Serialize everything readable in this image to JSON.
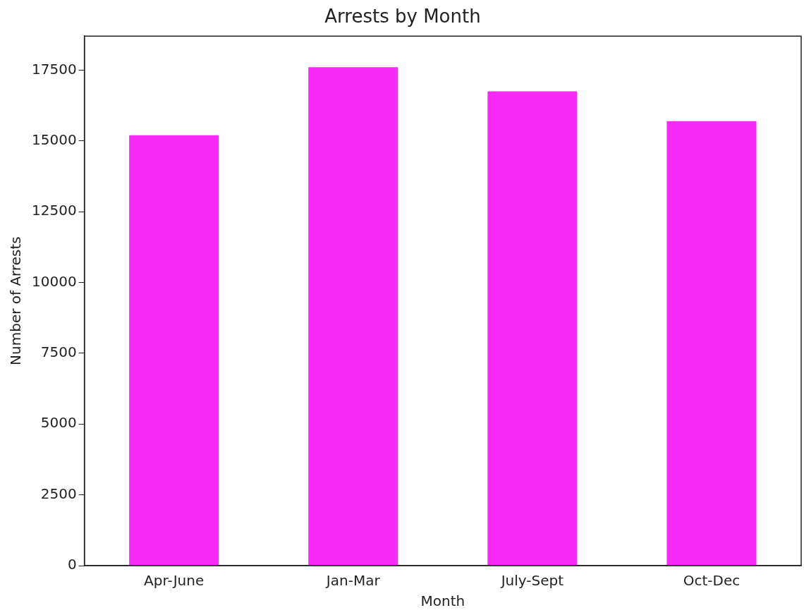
{
  "chart_data": {
    "type": "bar",
    "title": "Arrests by Month",
    "xlabel": "Month",
    "ylabel": "Number of Arrests",
    "categories": [
      "Apr-June",
      "Jan-Mar",
      "July-Sept",
      "Oct-Dec"
    ],
    "values": [
      15200,
      17600,
      16750,
      15700
    ],
    "color": "#f72af7",
    "ylim": [
      0,
      18700
    ],
    "yticks": [
      0,
      2500,
      5000,
      7500,
      10000,
      12500,
      15000,
      17500
    ],
    "grid": false,
    "legend": false
  }
}
